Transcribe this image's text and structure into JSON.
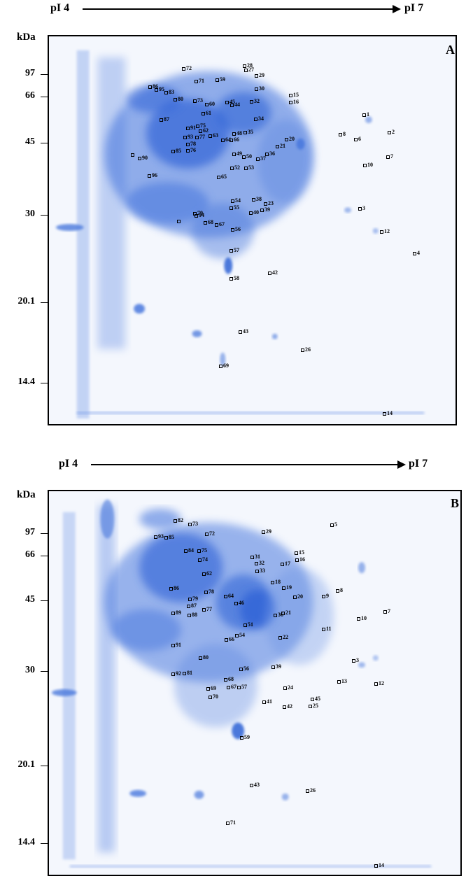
{
  "figure": {
    "ph_start": "pI 4",
    "ph_end": "pI 7",
    "mw_unit": "kDa",
    "mw_markers": [
      "97",
      "66",
      "45",
      "30",
      "20.1",
      "14.4"
    ],
    "colors": {
      "gel_background": "#f4f7fd",
      "protein_blue": "#2f63d6",
      "protein_light": "#7aa0ea"
    }
  },
  "panels": [
    {
      "letter": "A",
      "spots": [
        "1",
        "2",
        "3",
        "4",
        "6",
        "7",
        "8",
        "10",
        "12",
        "14",
        "15",
        "16",
        "20",
        "21",
        "23",
        "26",
        "27",
        "28",
        "29",
        "30",
        "32",
        "34",
        "35",
        "36",
        "37",
        "38",
        "39",
        "40",
        "42",
        "43",
        "44",
        "45",
        "48",
        "49",
        "50",
        "52",
        "53",
        "54",
        "55",
        "56",
        "57",
        "58",
        "59",
        "60",
        "61",
        "62",
        "63",
        "64",
        "65",
        "66",
        "67",
        "68",
        "69",
        "71",
        "72",
        "73",
        "75",
        "76",
        "77",
        "78",
        "79",
        "80",
        "83",
        "85",
        "86",
        "87",
        "90",
        "91",
        "93",
        "94",
        "95",
        "96"
      ]
    },
    {
      "letter": "B",
      "spots": [
        "3",
        "5",
        "7",
        "8",
        "9",
        "10",
        "11",
        "12",
        "13",
        "14",
        "15",
        "16",
        "17",
        "18",
        "19",
        "20",
        "21",
        "22",
        "24",
        "25",
        "26",
        "29",
        "31",
        "32",
        "33",
        "36",
        "39",
        "41",
        "42",
        "43",
        "45",
        "46",
        "51",
        "54",
        "56",
        "57",
        "59",
        "62",
        "64",
        "66",
        "67",
        "68",
        "69",
        "70",
        "71",
        "72",
        "73",
        "74",
        "75",
        "77",
        "78",
        "79",
        "80",
        "81",
        "82",
        "84",
        "85",
        "86",
        "87",
        "88",
        "89",
        "91",
        "92",
        "93"
      ]
    }
  ]
}
